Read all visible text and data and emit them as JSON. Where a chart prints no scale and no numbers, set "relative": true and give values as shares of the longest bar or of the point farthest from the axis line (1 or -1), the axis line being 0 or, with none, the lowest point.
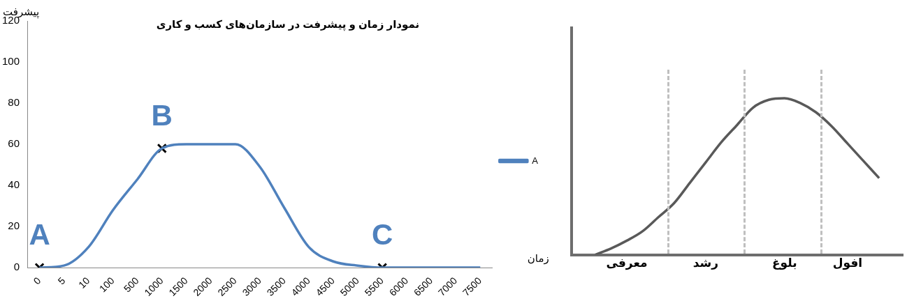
{
  "chart_data": [
    {
      "type": "line",
      "title": "نمودار زمان و پیشرفت در سازمان‌های کسب و کاری",
      "xlabel": "زمان",
      "ylabel": "پیشرفت",
      "categories": [
        "0",
        "5",
        "10",
        "100",
        "500",
        "1000",
        "1500",
        "2000",
        "2500",
        "3000",
        "3500",
        "4000",
        "4500",
        "5000",
        "5500",
        "6000",
        "6500",
        "7000",
        "7500"
      ],
      "series": [
        {
          "name": "A",
          "color": "#4f81bd",
          "values": [
            0,
            1,
            10,
            28,
            43,
            58,
            60,
            60,
            60,
            49,
            29,
            10,
            3,
            1,
            0,
            0,
            0,
            0,
            0
          ]
        },
        {
          "type": "scatter",
          "marker": "cross",
          "color": "#000000",
          "values": [
            0,
            null,
            null,
            null,
            null,
            58,
            null,
            null,
            null,
            null,
            null,
            null,
            null,
            null,
            0,
            null,
            null,
            null,
            null
          ]
        }
      ],
      "annotations": [
        {
          "text": "A",
          "x": "0",
          "y": 0
        },
        {
          "text": "B",
          "x": "1000",
          "y": 58
        },
        {
          "text": "C",
          "x": "5500",
          "y": 0
        }
      ],
      "ylim": [
        0,
        120
      ],
      "yticks": [
        0,
        20,
        40,
        60,
        80,
        100,
        120
      ],
      "grid": false,
      "legend": "right"
    },
    {
      "type": "line",
      "relative": true,
      "categories": [
        null,
        null,
        null,
        "معرفی",
        null,
        null,
        null,
        null,
        "رشد",
        null,
        null,
        null,
        null,
        "بلوغ",
        null,
        null,
        null,
        "افول",
        null,
        null,
        null
      ],
      "tick_labels": "x",
      "series": [
        {
          "color": "#595959",
          "values": [
            null,
            0,
            0.04,
            0.09,
            0.15,
            0.24,
            0.33,
            0.46,
            0.59,
            0.72,
            0.83,
            0.94,
            0.99,
            1,
            0.97,
            0.91,
            0.82,
            0.71,
            0.6,
            0.49,
            null
          ]
        }
      ],
      "grid": false,
      "legend": false
    }
  ]
}
